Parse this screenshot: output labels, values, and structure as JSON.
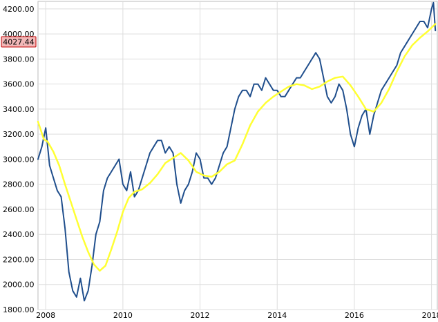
{
  "chart_data": {
    "type": "line",
    "title": "",
    "xlabel": "",
    "ylabel": "",
    "xlim": [
      2007.8,
      2018.15
    ],
    "ylim": [
      1800,
      4260
    ],
    "y_ticks": [
      "1800.00",
      "2000.00",
      "2200.00",
      "2400.00",
      "2600.00",
      "2800.00",
      "3000.00",
      "3200.00",
      "3400.00",
      "3600.00",
      "3800.00",
      "4000.00",
      "4200.00"
    ],
    "y_tick_values": [
      1800,
      2000,
      2200,
      2400,
      2600,
      2800,
      3000,
      3200,
      3400,
      3600,
      3800,
      4000,
      4200
    ],
    "x_ticks": [
      "2008",
      "2010",
      "2012",
      "2014",
      "2016",
      "2018"
    ],
    "x_tick_values": [
      2008,
      2010,
      2012,
      2014,
      2016,
      2018
    ],
    "grid": true,
    "current_value_label": "4027.44",
    "current_value": 4027.44,
    "colors": {
      "price": "#1f4e8c",
      "average": "#ffff33",
      "badge_fill": "#f2b8b8",
      "badge_border": "#c00000",
      "grid": "#dddddd"
    },
    "series": [
      {
        "key": "price",
        "x": [
          2007.8,
          2007.9,
          2008.0,
          2008.1,
          2008.2,
          2008.3,
          2008.4,
          2008.5,
          2008.6,
          2008.7,
          2008.8,
          2008.9,
          2009.0,
          2009.1,
          2009.2,
          2009.3,
          2009.4,
          2009.5,
          2009.6,
          2009.7,
          2009.8,
          2009.9,
          2010.0,
          2010.1,
          2010.2,
          2010.3,
          2010.4,
          2010.5,
          2010.6,
          2010.7,
          2010.8,
          2010.9,
          2011.0,
          2011.1,
          2011.2,
          2011.3,
          2011.4,
          2011.5,
          2011.6,
          2011.7,
          2011.8,
          2011.9,
          2012.0,
          2012.1,
          2012.2,
          2012.3,
          2012.4,
          2012.5,
          2012.6,
          2012.7,
          2012.8,
          2012.9,
          2013.0,
          2013.1,
          2013.2,
          2013.3,
          2013.4,
          2013.5,
          2013.6,
          2013.7,
          2013.8,
          2013.9,
          2014.0,
          2014.1,
          2014.2,
          2014.3,
          2014.4,
          2014.5,
          2014.6,
          2014.7,
          2014.8,
          2014.9,
          2015.0,
          2015.1,
          2015.2,
          2015.3,
          2015.4,
          2015.5,
          2015.6,
          2015.7,
          2015.8,
          2015.9,
          2016.0,
          2016.1,
          2016.2,
          2016.3,
          2016.4,
          2016.5,
          2016.6,
          2016.7,
          2016.8,
          2016.9,
          2017.0,
          2017.1,
          2017.2,
          2017.3,
          2017.4,
          2017.5,
          2017.6,
          2017.7,
          2017.8,
          2017.9,
          2018.0,
          2018.05,
          2018.1
        ],
        "y": [
          3000,
          3100,
          3250,
          2950,
          2850,
          2750,
          2700,
          2450,
          2100,
          1950,
          1900,
          2050,
          1870,
          1950,
          2150,
          2400,
          2500,
          2750,
          2850,
          2900,
          2950,
          3000,
          2800,
          2750,
          2900,
          2700,
          2750,
          2850,
          2950,
          3050,
          3100,
          3150,
          3150,
          3050,
          3100,
          3050,
          2800,
          2650,
          2750,
          2800,
          2900,
          3050,
          3000,
          2850,
          2850,
          2800,
          2850,
          2950,
          3050,
          3100,
          3250,
          3400,
          3500,
          3550,
          3550,
          3500,
          3600,
          3600,
          3550,
          3650,
          3600,
          3550,
          3550,
          3500,
          3500,
          3550,
          3600,
          3650,
          3650,
          3700,
          3750,
          3800,
          3850,
          3800,
          3650,
          3500,
          3450,
          3500,
          3600,
          3550,
          3400,
          3200,
          3100,
          3250,
          3350,
          3400,
          3200,
          3350,
          3450,
          3550,
          3600,
          3650,
          3700,
          3750,
          3850,
          3900,
          3950,
          4000,
          4050,
          4100,
          4100,
          4050,
          4200,
          4250,
          4027.44
        ]
      },
      {
        "key": "average",
        "x": [
          2007.8,
          2007.95,
          2008.05,
          2008.2,
          2008.35,
          2008.5,
          2008.65,
          2008.8,
          2008.95,
          2009.1,
          2009.25,
          2009.4,
          2009.55,
          2009.7,
          2009.85,
          2010.0,
          2010.15,
          2010.3,
          2010.5,
          2010.7,
          2010.9,
          2011.1,
          2011.3,
          2011.5,
          2011.7,
          2011.9,
          2012.1,
          2012.3,
          2012.5,
          2012.7,
          2012.9,
          2013.1,
          2013.3,
          2013.5,
          2013.7,
          2013.9,
          2014.1,
          2014.3,
          2014.5,
          2014.7,
          2014.9,
          2015.1,
          2015.3,
          2015.5,
          2015.7,
          2015.9,
          2016.1,
          2016.3,
          2016.5,
          2016.7,
          2016.9,
          2017.1,
          2017.3,
          2017.5,
          2017.7,
          2017.9,
          2018.1
        ],
        "y": [
          3300,
          3160,
          3140,
          3060,
          2950,
          2800,
          2660,
          2520,
          2380,
          2260,
          2160,
          2110,
          2150,
          2280,
          2420,
          2580,
          2690,
          2740,
          2760,
          2810,
          2880,
          2970,
          3010,
          3050,
          2990,
          2900,
          2870,
          2860,
          2900,
          2960,
          2990,
          3120,
          3270,
          3380,
          3450,
          3500,
          3540,
          3580,
          3600,
          3590,
          3560,
          3580,
          3620,
          3650,
          3660,
          3590,
          3500,
          3400,
          3380,
          3450,
          3560,
          3700,
          3820,
          3910,
          3970,
          4020,
          4080
        ]
      }
    ]
  }
}
